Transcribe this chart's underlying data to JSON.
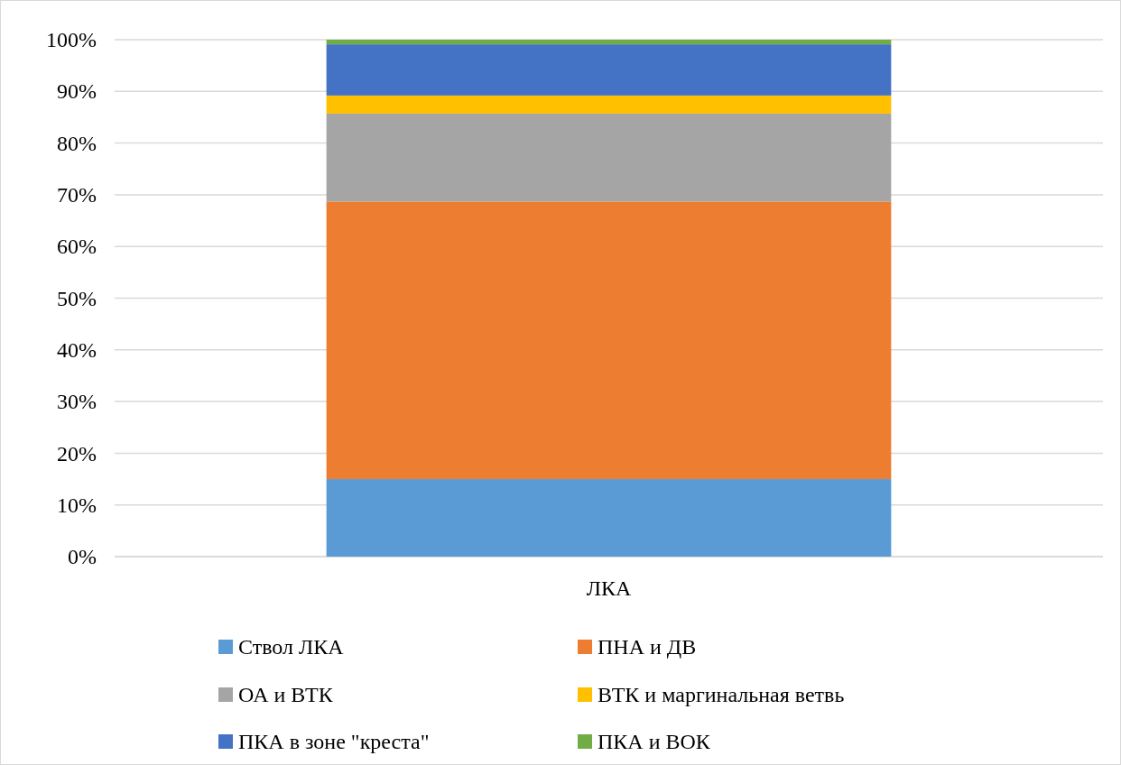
{
  "chart_data": {
    "type": "bar",
    "stacked": true,
    "categories": [
      "ЛКА"
    ],
    "series": [
      {
        "name": "Ствол ЛКА",
        "color": "#5b9bd5",
        "values": [
          15
        ]
      },
      {
        "name": "ПНА и ДВ",
        "color": "#ed7d31",
        "values": [
          53.7
        ]
      },
      {
        "name": "ОА и ВТК",
        "color": "#a5a5a5",
        "values": [
          17.0
        ]
      },
      {
        "name": "ВТК и маргинальная ветвь",
        "color": "#ffc000",
        "values": [
          3.5
        ]
      },
      {
        "name": "ПКА в зоне \"креста\"",
        "color": "#4472c4",
        "values": [
          9.9
        ]
      },
      {
        "name": "ПКА и ВОК",
        "color": "#70ad47",
        "values": [
          0.9
        ]
      }
    ],
    "ylim": [
      0,
      100
    ],
    "yticks": [
      {
        "value": 0,
        "label": "0%"
      },
      {
        "value": 10,
        "label": "10%"
      },
      {
        "value": 20,
        "label": "20%"
      },
      {
        "value": 30,
        "label": "30%"
      },
      {
        "value": 40,
        "label": "40%"
      },
      {
        "value": 50,
        "label": "50%"
      },
      {
        "value": 60,
        "label": "60%"
      },
      {
        "value": 70,
        "label": "70%"
      },
      {
        "value": 80,
        "label": "80%"
      },
      {
        "value": 90,
        "label": "90%"
      },
      {
        "value": 100,
        "label": "100%"
      }
    ],
    "grid": "y",
    "legend": "bottom"
  }
}
